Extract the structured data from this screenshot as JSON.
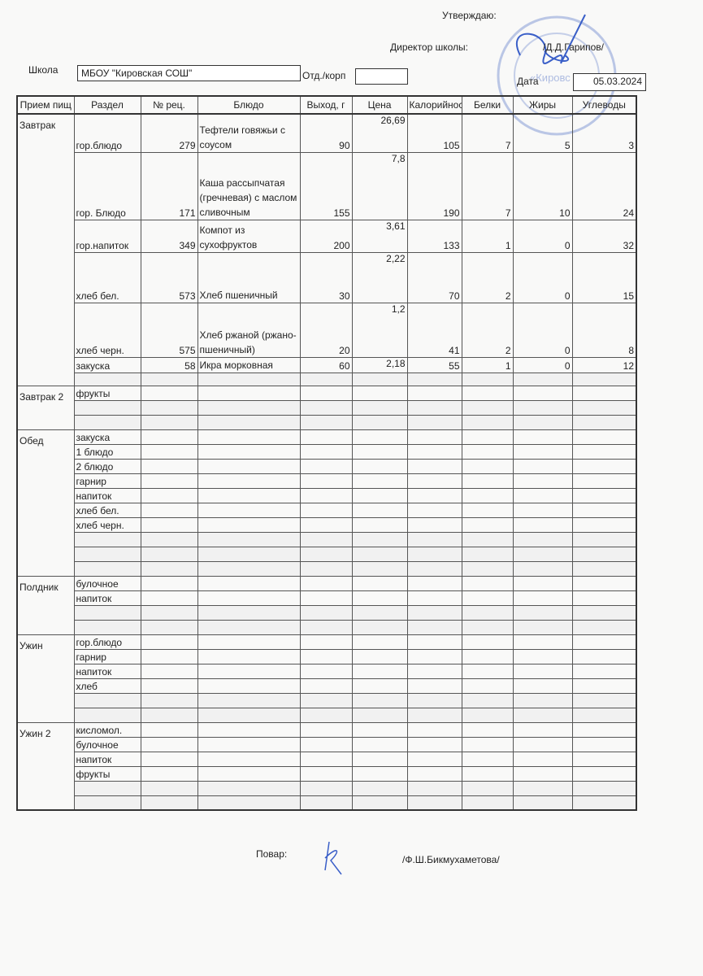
{
  "approval": {
    "approve": "Утверждаю:",
    "director_label": "Директор школы:",
    "director_name": "/Д.Д.Гарипов/"
  },
  "school": {
    "label": "Школа",
    "value": "МБОУ \"Кировская СОШ\"",
    "dept_label": "Отд./корп",
    "dept_value": "",
    "date_label": "Дата",
    "date_value": "05.03.2024"
  },
  "stamp": {
    "text": "«Кировс"
  },
  "columns": [
    "Прием пищ",
    "Раздел",
    "№ рец.",
    "Блюдо",
    "Выход, г",
    "Цена",
    "Калорийнос",
    "Белки",
    "Жиры",
    "Углеводы"
  ],
  "meals": [
    {
      "name": "Завтрак",
      "rows": [
        {
          "section": "гор.блюдо",
          "rec": "279",
          "dish": "Тефтели говяжьи с соусом",
          "out": "90",
          "price": "26,69",
          "cal": "105",
          "prot": "7",
          "fat": "5",
          "carb": "3",
          "h": 47
        },
        {
          "section": "гор. Блюдо",
          "rec": "171",
          "dish": "Каша рассыпчатая (гречневая) с маслом сливочным",
          "out": "155",
          "price": "7,8",
          "cal": "190",
          "prot": "7",
          "fat": "10",
          "carb": "24",
          "h": 83
        },
        {
          "section": "гор.напиток",
          "rec": "349",
          "dish": "Компот из сухофруктов",
          "out": "200",
          "price": "3,61",
          "cal": "133",
          "prot": "1",
          "fat": "0",
          "carb": "32",
          "h": 40
        },
        {
          "section": "хлеб бел.",
          "rec": "573",
          "dish": "Хлеб пшеничный",
          "out": "30",
          "price": "2,22",
          "cal": "70",
          "prot": "2",
          "fat": "0",
          "carb": "15",
          "h": 62
        },
        {
          "section": "хлеб черн.",
          "rec": "575",
          "dish": "Хлеб ржаной (ржано-пшеничный)",
          "out": "20",
          "price": "1,2",
          "cal": "41",
          "prot": "2",
          "fat": "0",
          "carb": "8",
          "h": 67
        },
        {
          "section": "закуска",
          "rec": "58",
          "dish": "Икра морковная",
          "out": "60",
          "price": "2,18",
          "cal": "55",
          "prot": "1",
          "fat": "0",
          "carb": "12",
          "h": 17
        },
        {
          "section": "",
          "h": 16
        }
      ]
    },
    {
      "name": "Завтрак 2",
      "rows": [
        {
          "section": "фрукты"
        },
        {
          "section": ""
        },
        {
          "section": ""
        }
      ]
    },
    {
      "name": "Обед",
      "rows": [
        {
          "section": "закуска"
        },
        {
          "section": "1 блюдо"
        },
        {
          "section": "2 блюдо"
        },
        {
          "section": "гарнир"
        },
        {
          "section": "напиток"
        },
        {
          "section": "хлеб бел."
        },
        {
          "section": "хлеб черн."
        },
        {
          "section": ""
        },
        {
          "section": ""
        },
        {
          "section": ""
        }
      ]
    },
    {
      "name": "Полдник",
      "rows": [
        {
          "section": "булочное"
        },
        {
          "section": "напиток"
        },
        {
          "section": ""
        },
        {
          "section": ""
        }
      ]
    },
    {
      "name": "Ужин",
      "rows": [
        {
          "section": "гор.блюдо"
        },
        {
          "section": "гарнир"
        },
        {
          "section": "напиток"
        },
        {
          "section": "хлеб"
        },
        {
          "section": ""
        },
        {
          "section": ""
        }
      ]
    },
    {
      "name": "Ужин 2",
      "rows": [
        {
          "section": "кисломол."
        },
        {
          "section": "булочное"
        },
        {
          "section": "напиток"
        },
        {
          "section": "фрукты"
        },
        {
          "section": ""
        },
        {
          "section": ""
        }
      ]
    }
  ],
  "footer": {
    "cook_label": "Повар:",
    "cook_name": "/Ф.Ш.Бикмухаметова/"
  }
}
